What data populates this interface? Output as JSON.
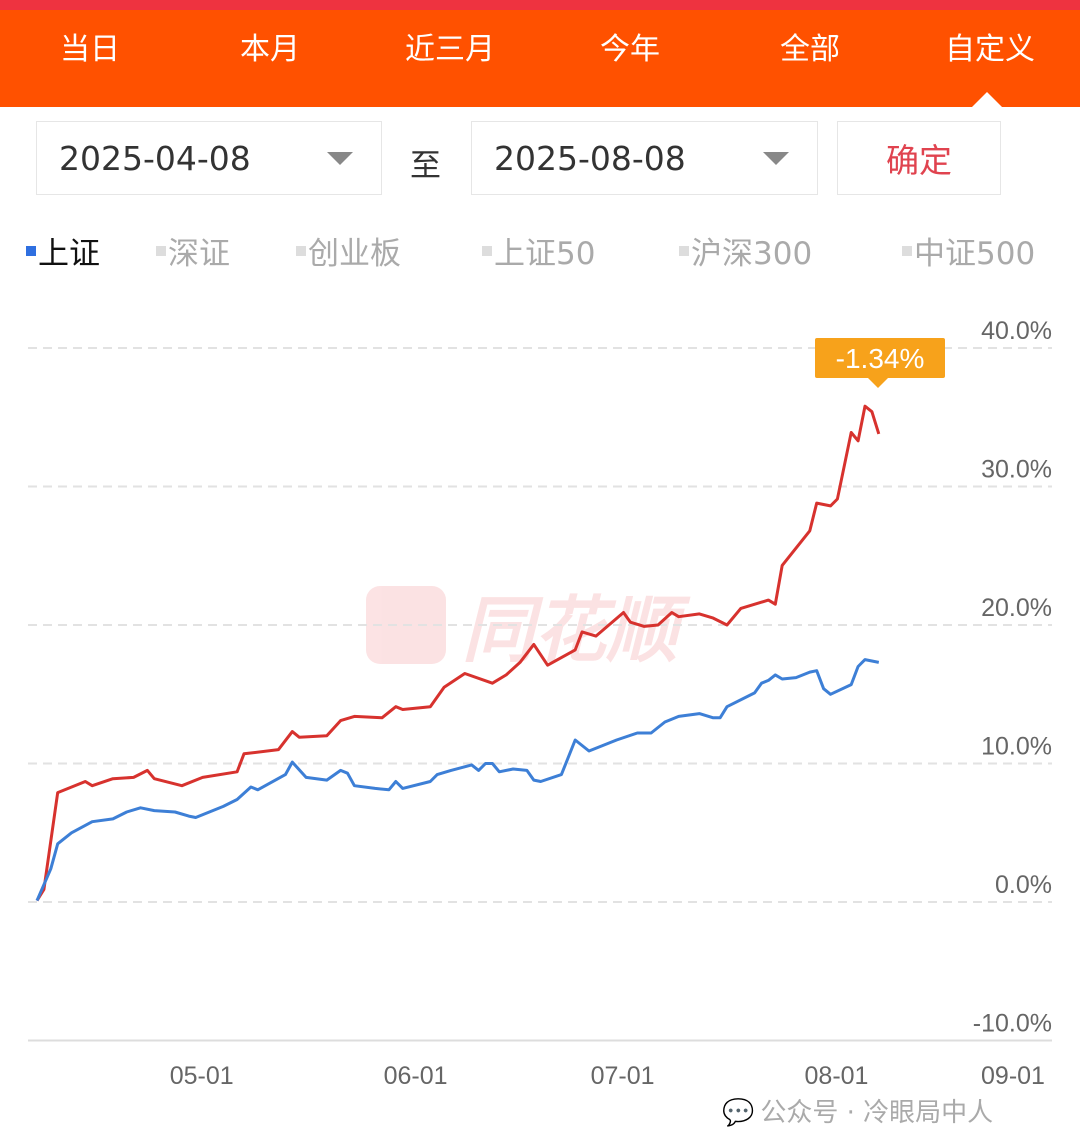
{
  "tabs": [
    "当日",
    "本月",
    "近三月",
    "今年",
    "全部",
    "自定义"
  ],
  "active_tab": 5,
  "date_range": {
    "start": "2025-04-08",
    "separator": "至",
    "end": "2025-08-08",
    "confirm": "确定"
  },
  "legend": [
    {
      "label": "上证",
      "active": true
    },
    {
      "label": "深证"
    },
    {
      "label": "创业板"
    },
    {
      "label": "上证50"
    },
    {
      "label": "沪深300"
    },
    {
      "label": "中证500"
    }
  ],
  "colors": {
    "header": "#ff5100",
    "top_strip": "#ee3340",
    "red_series": "#d7322e",
    "blue_series": "#3d7fd6",
    "tooltip": "#f7a21b",
    "active_legend": "#2f6fe0"
  },
  "watermark_logo": "同花顺",
  "watermark_text": "公众号 · 冷眼局中人",
  "chart_data": {
    "type": "line",
    "ylim": [
      -10,
      40
    ],
    "y_ticks": [
      "40.0%",
      "30.0%",
      "20.0%",
      "10.0%",
      "0.0%",
      "-10.0%"
    ],
    "y_tick_values": [
      40,
      30,
      20,
      10,
      0,
      -10
    ],
    "x_ticks": [
      "05-01",
      "06-01",
      "07-01",
      "08-01",
      "09-01"
    ],
    "x_tick_dates": [
      "2025-05-01",
      "2025-06-01",
      "2025-07-01",
      "2025-08-01",
      "2025-09-01"
    ],
    "grid": "horizontal dashed",
    "tooltip": "-1.34%",
    "series": [
      {
        "color": "#d7322e",
        "points": [
          [
            "2025-04-08",
            0.1
          ],
          [
            "2025-04-09",
            0.9
          ],
          [
            "2025-04-11",
            7.9
          ],
          [
            "2025-04-15",
            8.7
          ],
          [
            "2025-04-16",
            8.4
          ],
          [
            "2025-04-19",
            8.9
          ],
          [
            "2025-04-22",
            9.0
          ],
          [
            "2025-04-24",
            9.5
          ],
          [
            "2025-04-25",
            8.9
          ],
          [
            "2025-04-29",
            8.4
          ],
          [
            "2025-05-02",
            9.0
          ],
          [
            "2025-05-07",
            9.4
          ],
          [
            "2025-05-08",
            10.7
          ],
          [
            "2025-05-13",
            11.0
          ],
          [
            "2025-05-15",
            12.3
          ],
          [
            "2025-05-16",
            11.9
          ],
          [
            "2025-05-20",
            12.0
          ],
          [
            "2025-05-22",
            13.1
          ],
          [
            "2025-05-24",
            13.4
          ],
          [
            "2025-05-28",
            13.3
          ],
          [
            "2025-05-30",
            14.1
          ],
          [
            "2025-05-31",
            13.9
          ],
          [
            "2025-06-04",
            14.1
          ],
          [
            "2025-06-06",
            15.5
          ],
          [
            "2025-06-09",
            16.5
          ],
          [
            "2025-06-13",
            15.8
          ],
          [
            "2025-06-15",
            16.4
          ],
          [
            "2025-06-17",
            17.3
          ],
          [
            "2025-06-19",
            18.6
          ],
          [
            "2025-06-21",
            17.1
          ],
          [
            "2025-06-25",
            18.2
          ],
          [
            "2025-06-26",
            19.5
          ],
          [
            "2025-06-28",
            19.2
          ],
          [
            "2025-07-02",
            20.9
          ],
          [
            "2025-07-03",
            20.2
          ],
          [
            "2025-07-05",
            19.9
          ],
          [
            "2025-07-07",
            20.0
          ],
          [
            "2025-07-09",
            20.9
          ],
          [
            "2025-07-10",
            20.6
          ],
          [
            "2025-07-13",
            20.8
          ],
          [
            "2025-07-15",
            20.5
          ],
          [
            "2025-07-17",
            20.0
          ],
          [
            "2025-07-19",
            21.2
          ],
          [
            "2025-07-23",
            21.8
          ],
          [
            "2025-07-24",
            21.5
          ],
          [
            "2025-07-25",
            24.3
          ],
          [
            "2025-07-29",
            26.8
          ],
          [
            "2025-07-30",
            28.8
          ],
          [
            "2025-08-01",
            28.6
          ],
          [
            "2025-08-02",
            29.1
          ],
          [
            "2025-08-04",
            33.9
          ],
          [
            "2025-08-05",
            33.3
          ],
          [
            "2025-08-06",
            35.8
          ],
          [
            "2025-08-07",
            35.4
          ],
          [
            "2025-08-08",
            33.8
          ]
        ]
      },
      {
        "name": "上证",
        "color": "#3d7fd6",
        "points": [
          [
            "2025-04-08",
            0.1
          ],
          [
            "2025-04-10",
            2.4
          ],
          [
            "2025-04-11",
            4.2
          ],
          [
            "2025-04-13",
            5.0
          ],
          [
            "2025-04-16",
            5.8
          ],
          [
            "2025-04-19",
            6.0
          ],
          [
            "2025-04-21",
            6.5
          ],
          [
            "2025-04-23",
            6.8
          ],
          [
            "2025-04-25",
            6.6
          ],
          [
            "2025-04-28",
            6.5
          ],
          [
            "2025-04-30",
            6.2
          ],
          [
            "2025-05-01",
            6.1
          ],
          [
            "2025-05-05",
            6.9
          ],
          [
            "2025-05-07",
            7.4
          ],
          [
            "2025-05-09",
            8.3
          ],
          [
            "2025-05-10",
            8.1
          ],
          [
            "2025-05-14",
            9.2
          ],
          [
            "2025-05-15",
            10.1
          ],
          [
            "2025-05-17",
            9.0
          ],
          [
            "2025-05-20",
            8.8
          ],
          [
            "2025-05-22",
            9.5
          ],
          [
            "2025-05-23",
            9.3
          ],
          [
            "2025-05-24",
            8.4
          ],
          [
            "2025-05-27",
            8.2
          ],
          [
            "2025-05-29",
            8.1
          ],
          [
            "2025-05-30",
            8.7
          ],
          [
            "2025-05-31",
            8.2
          ],
          [
            "2025-06-04",
            8.7
          ],
          [
            "2025-06-05",
            9.2
          ],
          [
            "2025-06-07",
            9.5
          ],
          [
            "2025-06-10",
            9.9
          ],
          [
            "2025-06-11",
            9.5
          ],
          [
            "2025-06-12",
            10.0
          ],
          [
            "2025-06-13",
            10.0
          ],
          [
            "2025-06-14",
            9.4
          ],
          [
            "2025-06-16",
            9.6
          ],
          [
            "2025-06-18",
            9.5
          ],
          [
            "2025-06-19",
            8.8
          ],
          [
            "2025-06-20",
            8.7
          ],
          [
            "2025-06-23",
            9.2
          ],
          [
            "2025-06-25",
            11.7
          ],
          [
            "2025-06-27",
            10.9
          ],
          [
            "2025-06-29",
            11.3
          ],
          [
            "2025-07-01",
            11.7
          ],
          [
            "2025-07-04",
            12.2
          ],
          [
            "2025-07-06",
            12.2
          ],
          [
            "2025-07-08",
            13.0
          ],
          [
            "2025-07-10",
            13.4
          ],
          [
            "2025-07-13",
            13.6
          ],
          [
            "2025-07-15",
            13.3
          ],
          [
            "2025-07-16",
            13.3
          ],
          [
            "2025-07-17",
            14.1
          ],
          [
            "2025-07-21",
            15.1
          ],
          [
            "2025-07-22",
            15.8
          ],
          [
            "2025-07-23",
            16.0
          ],
          [
            "2025-07-24",
            16.4
          ],
          [
            "2025-07-25",
            16.1
          ],
          [
            "2025-07-27",
            16.2
          ],
          [
            "2025-07-29",
            16.6
          ],
          [
            "2025-07-30",
            16.7
          ],
          [
            "2025-07-31",
            15.4
          ],
          [
            "2025-08-01",
            15.0
          ],
          [
            "2025-08-04",
            15.7
          ],
          [
            "2025-08-05",
            17.0
          ],
          [
            "2025-08-06",
            17.5
          ],
          [
            "2025-08-08",
            17.3
          ]
        ]
      }
    ]
  }
}
